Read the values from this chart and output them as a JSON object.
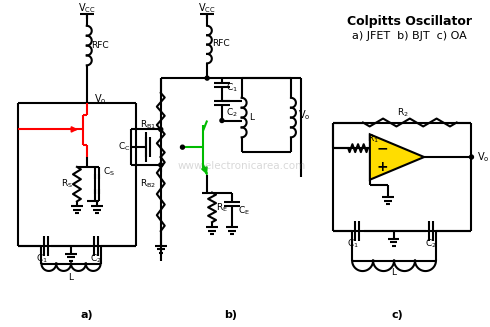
{
  "bg_color": "#ffffff",
  "title": "Colpitts Oscillator",
  "subtitle": "a) JFET  b) BJT  c) OA",
  "watermark": "www.electronicarea.com",
  "line_color": "#000000",
  "red_color": "#ff0000",
  "green_color": "#00bb00",
  "yellow_color": "#ffdd00",
  "lw": 1.5
}
